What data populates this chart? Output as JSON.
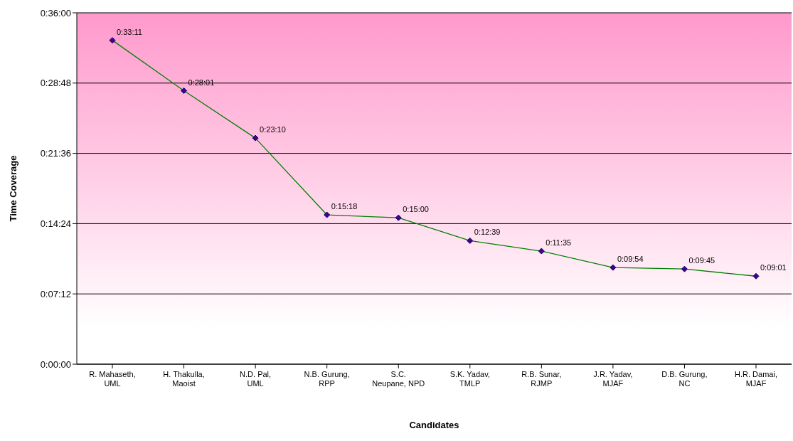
{
  "chart_data": {
    "type": "line",
    "xlabel": "Candidates",
    "ylabel": "Time Coverage",
    "categories": [
      "R. Mahaseth, UML",
      "H. Thakulla, Maoist",
      "N.D. Pal, UML",
      "N.B. Gurung, RPP",
      "S.C. Neupane, NPD",
      "S.K. Yadav, TMLP",
      "R.B. Sunar, RJMP",
      "J.R. Yadav, MJAF",
      "D.B. Gurung, NC",
      "H.R. Damai, MJAF"
    ],
    "series": [
      {
        "color": "#008000",
        "values": [
          1991,
          1681,
          1390,
          918,
          900,
          759,
          695,
          594,
          585,
          541
        ],
        "value_labels": [
          "0:33:11",
          "0:28:01",
          "0:23:10",
          "0:15:18",
          "0:15:00",
          "0:12:39",
          "0:11:35",
          "0:09:54",
          "0:09:45",
          "0:09:01"
        ]
      }
    ],
    "ylim": [
      0,
      2160
    ],
    "yticks": [
      {
        "value": 0,
        "label": "0:00:00"
      },
      {
        "value": 432,
        "label": "0:07:12"
      },
      {
        "value": 864,
        "label": "0:14:24"
      },
      {
        "value": 1296,
        "label": "0:21:36"
      },
      {
        "value": 1728,
        "label": "0:28:48"
      },
      {
        "value": 2160,
        "label": "0:36:00"
      }
    ],
    "grid": "y",
    "marker": "diamond",
    "line_style": "solid"
  }
}
